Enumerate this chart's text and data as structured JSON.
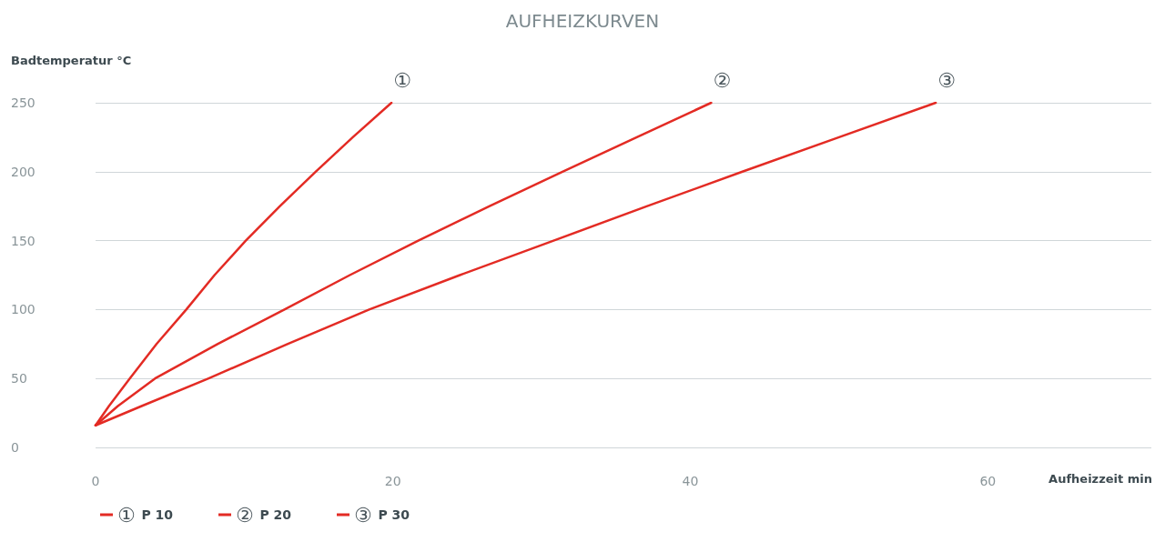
{
  "chart_data": {
    "type": "line",
    "title": "AUFHEIZKURVEN",
    "ylabel": "Badtemperatur °C",
    "xlabel": "Aufheizzeit min",
    "series": [
      {
        "name": "P 10",
        "color": "#e32b24",
        "x": [
          0,
          0.9,
          2.3,
          4.1,
          6.1,
          8.0,
          10.1,
          12.4,
          14.8,
          17.3,
          19.9
        ],
        "values": [
          16,
          30,
          50,
          75,
          100,
          125,
          150,
          175,
          200,
          225,
          250
        ]
      },
      {
        "name": "P 20",
        "color": "#e32b24",
        "x": [
          0,
          1.5,
          4.0,
          8.2,
          12.7,
          17.1,
          21.7,
          26.5,
          31.4,
          36.4,
          41.4
        ],
        "values": [
          16,
          30,
          50,
          75,
          100,
          125,
          150,
          175,
          200,
          225,
          250
        ]
      },
      {
        "name": "P 30",
        "color": "#e32b24",
        "x": [
          0,
          3.1,
          7.6,
          12.9,
          18.4,
          24.5,
          30.8,
          37.1,
          43.5,
          50.0,
          56.5
        ],
        "values": [
          16,
          30,
          50,
          75,
          100,
          125,
          150,
          175,
          200,
          225,
          250
        ]
      }
    ],
    "annotations": [
      {
        "text": "①",
        "x": 19.9,
        "y": 250
      },
      {
        "text": "②",
        "x": 41.4,
        "y": 250
      },
      {
        "text": "③",
        "x": 56.5,
        "y": 250
      }
    ],
    "xlim": [
      0,
      71
    ],
    "xticks": [
      0,
      20,
      40,
      60
    ],
    "ylim": [
      0,
      250
    ],
    "yticks": [
      0,
      50,
      100,
      150,
      200,
      250
    ],
    "grid": "y",
    "legend": "bottom left",
    "marker": "none",
    "line_style": "solid"
  }
}
